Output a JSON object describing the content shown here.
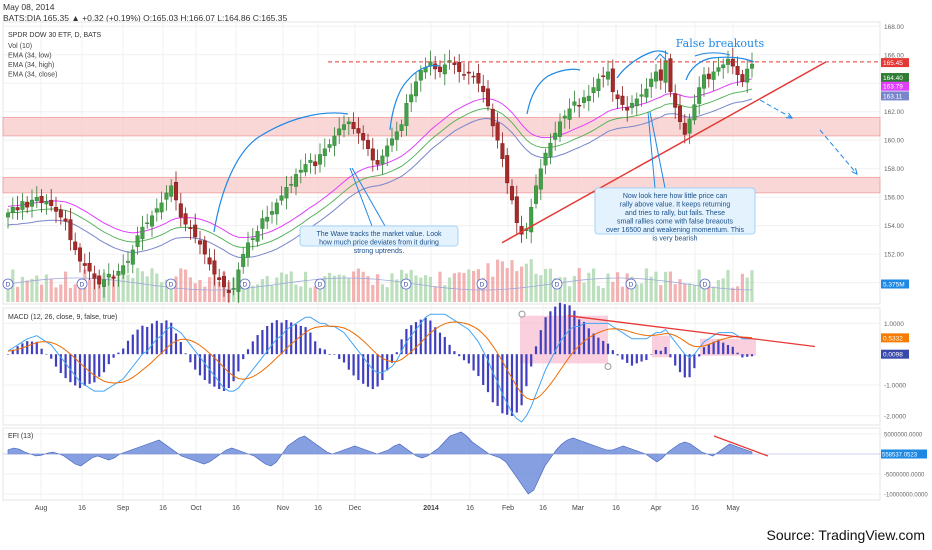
{
  "header": {
    "date": "May 08, 2014",
    "ticker_line": "BATS:DIA 165.35 ▲ +0.32 (+0.19%) O:165.03 H:166.07 L:164.86 C:165.35"
  },
  "source": "Source: TradingView.com",
  "chart_data": [
    {
      "type": "candlestick",
      "pane": "price",
      "title": "SPDR DOW 30 ETF, D, BATS",
      "indicators": [
        "Vol (10)",
        "EMA (34, low)",
        "EMA (34, high)",
        "EMA (34, close)"
      ],
      "x_tick_labels": [
        "Aug",
        "16",
        "Sep",
        "16",
        "Oct",
        "16",
        "Nov",
        "16",
        "Dec",
        "2014",
        "16",
        "Feb",
        "16",
        "Mar",
        "16",
        "Apr",
        "16",
        "May"
      ],
      "y_tick_labels": [
        "168.00",
        "166.00",
        "164.00",
        "162.00",
        "160.00",
        "158.00",
        "156.00",
        "154.00",
        "152.00",
        "150.00"
      ],
      "ylim": [
        148.5,
        168.3
      ],
      "price_badges": [
        {
          "value": "165.45",
          "color": "#e53935"
        },
        {
          "value": "164.40",
          "color": "#2e7d32"
        },
        {
          "value": "163.79",
          "color": "#e040fb"
        },
        {
          "value": "163.11",
          "color": "#7986cb"
        },
        {
          "value": "5.375M",
          "color": "#1e88e5"
        }
      ],
      "closes_approx": [
        154.9,
        155.3,
        155.1,
        155.7,
        155.3,
        155.8,
        156.0,
        155.6,
        155.7,
        155.4,
        155.0,
        154.6,
        154.3,
        153.0,
        152.3,
        151.5,
        151.2,
        150.8,
        150.3,
        149.9,
        150.2,
        150.6,
        150.3,
        150.8,
        151.2,
        151.5,
        152.3,
        153.3,
        153.9,
        154.2,
        154.7,
        155.2,
        155.6,
        156.3,
        156.8,
        155.8,
        154.6,
        154.1,
        153.8,
        153.2,
        152.7,
        152.0,
        151.3,
        150.6,
        150.2,
        149.7,
        149.3,
        149.6,
        150.9,
        152.0,
        152.8,
        153.1,
        153.6,
        154.5,
        154.6,
        155.0,
        155.6,
        156.1,
        156.7,
        156.9,
        157.6,
        157.9,
        158.3,
        158.6,
        158.2,
        159.0,
        159.4,
        159.7,
        160.3,
        160.8,
        161.1,
        161.3,
        160.8,
        160.5,
        160.0,
        159.4,
        158.6,
        158.3,
        158.9,
        159.6,
        160.1,
        160.6,
        161.1,
        162.6,
        163.2,
        164.1,
        164.9,
        165.1,
        165.5,
        165.0,
        164.8,
        165.3,
        165.6,
        165.3,
        164.8,
        164.6,
        164.7,
        164.5,
        164.0,
        163.4,
        162.4,
        161.0,
        160.0,
        158.7,
        157.0,
        155.8,
        154.2,
        153.4,
        153.8,
        155.3,
        156.8,
        158.0,
        159.1,
        159.8,
        160.5,
        161.3,
        161.7,
        162.2,
        162.7,
        162.4,
        163.0,
        163.1,
        163.7,
        164.3,
        164.5,
        164.8,
        163.4,
        162.9,
        162.5,
        162.1,
        162.6,
        162.9,
        163.2,
        163.6,
        164.3,
        164.8,
        164.2,
        165.6,
        163.4,
        162.3,
        161.3,
        160.4,
        161.5,
        162.5,
        163.7,
        164.6,
        164.3,
        164.8,
        165.1,
        165.3,
        165.7,
        165.2,
        164.6,
        164.1,
        165.0,
        165.35
      ]
    },
    {
      "type": "histogram+line",
      "pane": "macd",
      "title": "MACD (12, 26, close, 9, false, true)",
      "y_tick_labels": [
        "1.0000",
        "-1.0000",
        "-2.0000"
      ],
      "value_badges": [
        {
          "value": "0.5332",
          "color": "#f57c00"
        },
        {
          "value": "0.0098",
          "color": "#3949ab"
        }
      ],
      "macd_approx": [
        0.1,
        0.2,
        0.3,
        0.4,
        0.5,
        0.55,
        0.6,
        0.5,
        0.4,
        0.3,
        0.1,
        -0.1,
        -0.3,
        -0.5,
        -0.7,
        -0.9,
        -1.0,
        -1.1,
        -1.2,
        -1.2,
        -1.2,
        -1.1,
        -1.0,
        -0.9,
        -0.8,
        -0.6,
        -0.4,
        -0.2,
        0.0,
        0.1,
        0.3,
        0.5,
        0.6,
        0.8,
        0.9,
        0.8,
        0.7,
        0.5,
        0.3,
        0.1,
        -0.1,
        -0.3,
        -0.5,
        -0.7,
        -0.9,
        -1.1,
        -1.2,
        -1.2,
        -1.1,
        -0.9,
        -0.7,
        -0.5,
        -0.3,
        -0.1,
        0.1,
        0.3,
        0.5,
        0.6,
        0.8,
        0.9,
        1.0,
        1.1,
        1.2,
        1.2,
        1.1,
        1.0,
        1.0,
        0.9,
        0.9,
        0.8,
        0.7,
        0.5,
        0.3,
        0.1,
        -0.1,
        -0.3,
        -0.5,
        -0.6,
        -0.6,
        -0.5,
        -0.4,
        -0.2,
        0.1,
        0.4,
        0.6,
        0.8,
        1.0,
        1.2,
        1.3,
        1.3,
        1.3,
        1.3,
        1.2,
        1.1,
        1.0,
        0.9,
        0.8,
        0.6,
        0.4,
        0.1,
        -0.2,
        -0.6,
        -0.9,
        -1.3,
        -1.6,
        -1.9,
        -2.1,
        -2.2,
        -2.0,
        -1.7,
        -1.3,
        -0.9,
        -0.5,
        -0.2,
        0.1,
        0.4,
        0.6,
        0.8,
        0.9,
        0.9,
        1.0,
        1.0,
        1.0,
        1.0,
        1.0,
        1.0,
        0.9,
        0.8,
        0.7,
        0.6,
        0.5,
        0.5,
        0.5,
        0.5,
        0.6,
        0.7,
        0.7,
        0.8,
        0.6,
        0.4,
        0.2,
        0.0,
        -0.1,
        0.0,
        0.2,
        0.4,
        0.5,
        0.6,
        0.7,
        0.7,
        0.7,
        0.7,
        0.6,
        0.5,
        0.5,
        0.5
      ]
    },
    {
      "type": "area",
      "pane": "efi",
      "title": "EFI (13)",
      "y_tick_labels": [
        "5000000.0000",
        "-5000000.0000",
        "-10000000.0000"
      ],
      "value_badges": [
        {
          "value": "558537.0523",
          "color": "#1e88e5"
        }
      ],
      "efi_approx": [
        1.0,
        1.5,
        1.2,
        0.5,
        0.0,
        -0.5,
        -0.3,
        0.2,
        0.5,
        0.1,
        -0.5,
        -1.5,
        -2.5,
        -3.0,
        -2.0,
        -1.0,
        -0.5,
        -1.0,
        -1.5,
        -1.0,
        0.0,
        0.5,
        1.0,
        1.5,
        2.0,
        2.5,
        3.0,
        3.5,
        2.5,
        1.5,
        0.5,
        -0.5,
        -1.0,
        -1.5,
        -2.0,
        -2.5,
        -2.0,
        -1.0,
        0.0,
        1.0,
        1.5,
        1.0,
        0.5,
        0.0,
        -0.5,
        -1.5,
        -2.5,
        -3.0,
        -2.0,
        0.0,
        2.0,
        3.0,
        4.0,
        4.5,
        3.5,
        2.5,
        1.5,
        0.5,
        0.0,
        0.5,
        1.0,
        1.5,
        2.0,
        1.5,
        1.0,
        0.5,
        0.0,
        0.5,
        1.0,
        2.0,
        2.5,
        1.5,
        0.5,
        -0.5,
        -1.0,
        -0.5,
        0.5,
        1.5,
        3.0,
        4.5,
        5.0,
        5.5,
        4.5,
        3.0,
        2.0,
        1.0,
        0.0,
        -0.5,
        -1.0,
        -2.0,
        -4.0,
        -6.0,
        -8.0,
        -10.0,
        -9.0,
        -6.0,
        -3.0,
        -1.0,
        1.0,
        2.5,
        3.5,
        4.0,
        3.5,
        3.0,
        2.5,
        2.0,
        1.5,
        1.0,
        1.0,
        1.5,
        2.0,
        1.5,
        1.0,
        0.5,
        0.0,
        -1.0,
        -2.0,
        -1.0,
        0.5,
        1.5,
        2.5,
        3.0,
        2.5,
        1.5,
        0.5,
        0.0,
        -0.5,
        0.5,
        1.5,
        2.5,
        2.0,
        1.5,
        1.0,
        0.5
      ]
    }
  ],
  "annotations": {
    "false_breakouts": "False breakouts",
    "wave_note": "The Wave tracks the market value. Look how much price deviates from it during strong uptrends.",
    "rally_note": "Now look here how little price can rally above value. It keeps returning and tries to rally, but fails. These small rallies come with false breaouts over 16500 and weakening momentum. This is very bearish"
  }
}
